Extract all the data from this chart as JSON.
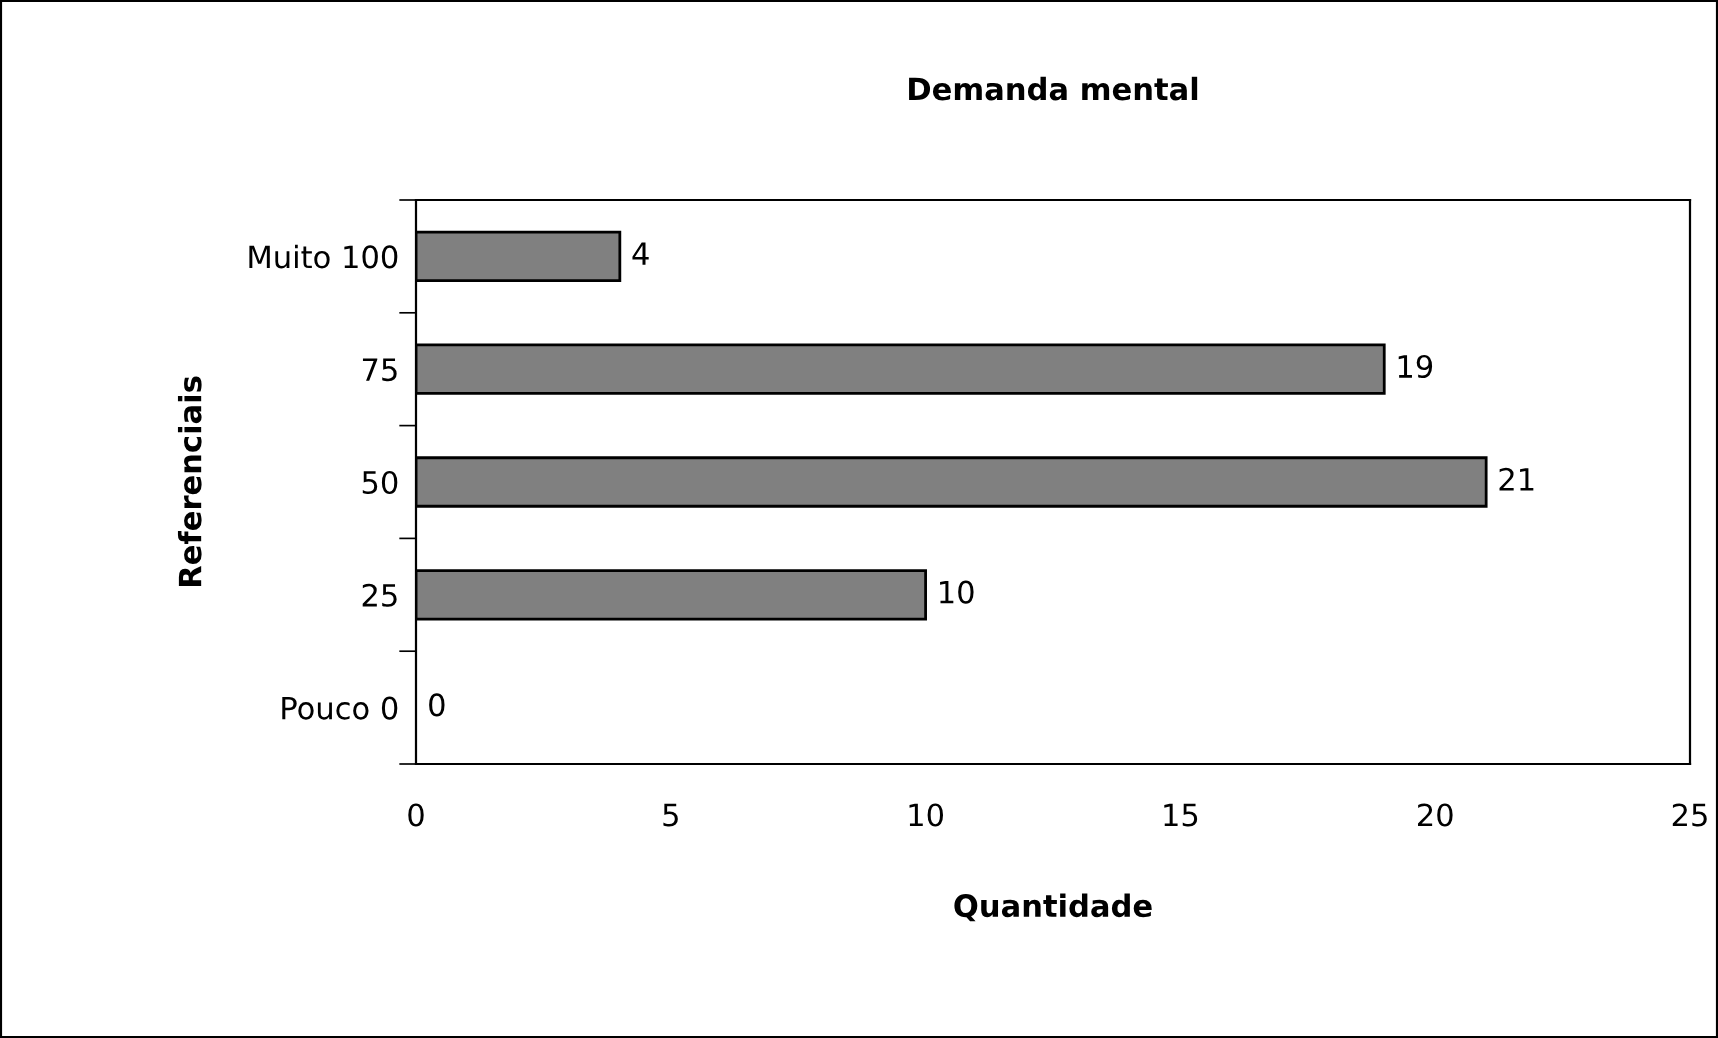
{
  "chart_data": {
    "type": "bar",
    "orientation": "horizontal",
    "title": "Demanda mental",
    "xlabel": "Quantidade",
    "ylabel": "Referenciais",
    "categories": [
      "Muito 100",
      "75",
      "50",
      "25",
      "Pouco 0"
    ],
    "values": [
      4,
      19,
      21,
      10,
      0
    ],
    "color": "#808080",
    "xlim": [
      0,
      25
    ],
    "xticks": [
      0,
      5,
      10,
      15,
      20,
      25
    ],
    "data_labels": true,
    "grid": false,
    "legend": false
  }
}
